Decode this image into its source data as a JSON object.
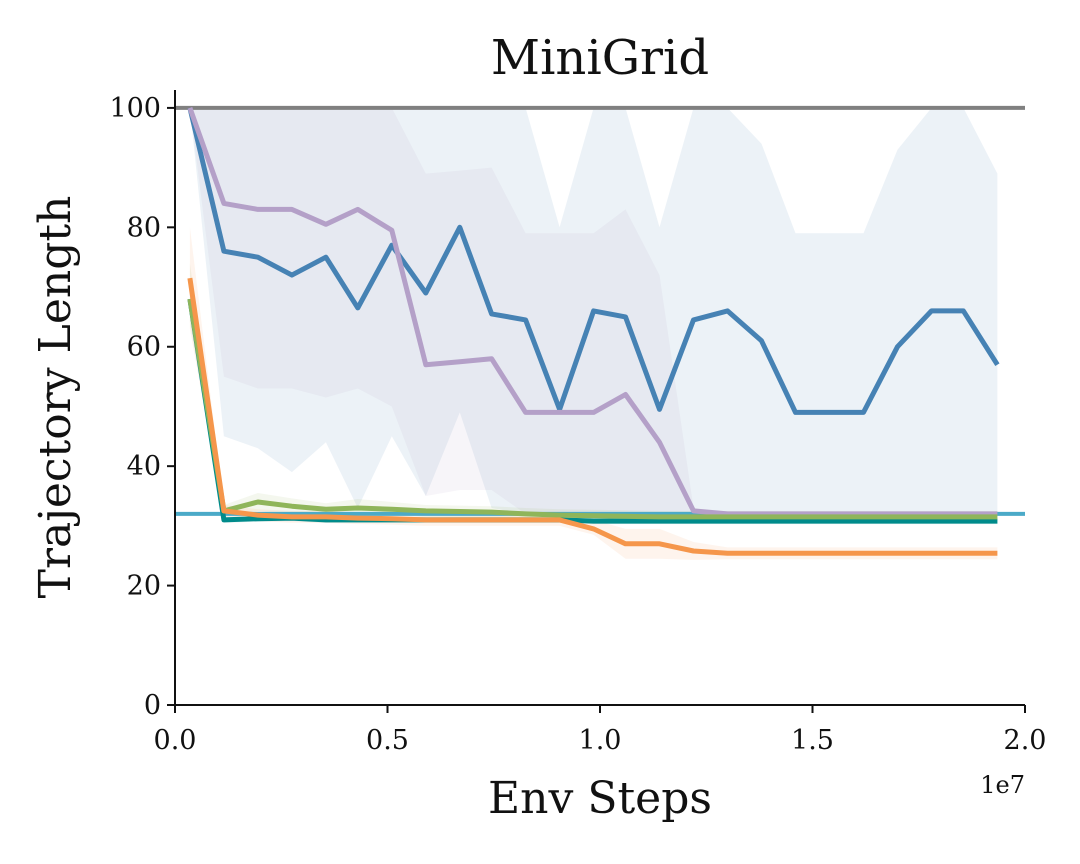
{
  "chart_data": {
    "type": "line",
    "title": "MiniGrid",
    "xlabel": "Env Steps",
    "ylabel": "Trajectory Length",
    "x_offset_label": "1e7",
    "xlim": [
      0,
      2.0
    ],
    "ylim": [
      0,
      103
    ],
    "xticks": [
      0.0,
      0.5,
      1.0,
      1.5,
      2.0
    ],
    "xtick_labels": [
      "0.0",
      "0.5",
      "1.0",
      "1.5",
      "2.0"
    ],
    "yticks": [
      0,
      20,
      40,
      60,
      80,
      100
    ],
    "ytick_labels": [
      "0",
      "20",
      "40",
      "60",
      "80",
      "100"
    ],
    "grid": false,
    "legend": "none",
    "hlines": [
      {
        "y": 100,
        "color": "#808080"
      },
      {
        "y": 32,
        "color": "#4BAAC8"
      }
    ],
    "series": [
      {
        "color": "#4682B4",
        "x": [
          0.035,
          0.115,
          0.195,
          0.275,
          0.355,
          0.43,
          0.51,
          0.59,
          0.67,
          0.745,
          0.825,
          0.905,
          0.985,
          1.06,
          1.14,
          1.22,
          1.3,
          1.38,
          1.46,
          1.54,
          1.62,
          1.7,
          1.78,
          1.855,
          1.935
        ],
        "y": [
          100,
          76,
          75,
          72,
          75,
          66.5,
          77,
          69,
          80,
          65.5,
          64.5,
          49.5,
          66,
          65,
          49.5,
          64.5,
          66,
          61,
          49,
          49,
          49,
          60,
          66,
          66,
          57
        ],
        "band_low": [
          100,
          45,
          43,
          39,
          44,
          33,
          45,
          35,
          49,
          33,
          32,
          32,
          32,
          32,
          32,
          32,
          32,
          32,
          32,
          32,
          32,
          32,
          32,
          32,
          32
        ],
        "band_high": [
          100,
          100,
          100,
          100,
          100,
          100,
          100,
          100,
          100,
          100,
          100,
          80,
          100,
          100,
          80,
          100,
          100,
          94,
          79,
          79,
          79,
          93,
          100,
          100,
          89
        ]
      },
      {
        "color": "#B4A0C8",
        "x": [
          0.035,
          0.115,
          0.195,
          0.275,
          0.355,
          0.43,
          0.51,
          0.59,
          0.67,
          0.745,
          0.825,
          0.905,
          0.985,
          1.06,
          1.14,
          1.22,
          1.3,
          1.38,
          1.46,
          1.54,
          1.62,
          1.7,
          1.78,
          1.855,
          1.935
        ],
        "y": [
          100,
          84,
          83,
          83,
          80.5,
          83,
          79.5,
          57,
          57.5,
          58,
          49,
          49,
          49,
          52,
          44,
          32.5,
          32,
          32,
          32,
          32,
          32,
          32,
          32,
          32,
          32
        ],
        "band_low": [
          100,
          55,
          53,
          53,
          51.5,
          53,
          50,
          35,
          36,
          36,
          32,
          32,
          32,
          32,
          32,
          32,
          32,
          32,
          32,
          32,
          32,
          32,
          32,
          32,
          32
        ],
        "band_high": [
          100,
          100,
          100,
          100,
          100,
          100,
          100,
          89,
          89.5,
          90,
          79,
          79,
          79,
          83,
          72,
          33,
          32,
          32,
          32,
          32,
          32,
          32,
          32,
          32,
          32
        ]
      },
      {
        "color": "#008B8B",
        "x": [
          0.035,
          0.115,
          0.195,
          0.275,
          0.355,
          0.43,
          0.51,
          0.59,
          0.67,
          0.745,
          0.825,
          0.905,
          0.985,
          1.06,
          1.14,
          1.22,
          1.3,
          1.38,
          1.46,
          1.54,
          1.62,
          1.7,
          1.78,
          1.855,
          1.935
        ],
        "y": [
          68,
          31,
          31.2,
          31.3,
          31,
          31,
          31,
          31,
          31,
          31,
          31,
          31,
          30.8,
          30.8,
          30.8,
          30.8,
          30.8,
          30.8,
          30.8,
          30.8,
          30.8,
          30.8,
          30.8,
          30.8,
          30.8
        ],
        "band_low": [
          66,
          30.5,
          30.7,
          30.8,
          30.5,
          30.5,
          30.5,
          30.5,
          30.5,
          30.5,
          30.5,
          30.5,
          30.3,
          30.3,
          30.3,
          30.3,
          30.3,
          30.3,
          30.3,
          30.3,
          30.3,
          30.3,
          30.3,
          30.3,
          30.3
        ],
        "band_high": [
          70,
          31.5,
          31.7,
          31.8,
          31.5,
          31.5,
          31.5,
          31.5,
          31.5,
          31.5,
          31.5,
          31.5,
          31.3,
          31.3,
          31.3,
          31.3,
          31.3,
          31.3,
          31.3,
          31.3,
          31.3,
          31.3,
          31.3,
          31.3,
          31.3
        ]
      },
      {
        "color": "#8FB55A",
        "x": [
          0.035,
          0.115,
          0.195,
          0.275,
          0.355,
          0.43,
          0.51,
          0.59,
          0.67,
          0.745,
          0.825,
          0.905,
          0.985,
          1.06,
          1.14,
          1.22,
          1.3,
          1.38,
          1.46,
          1.54,
          1.62,
          1.7,
          1.78,
          1.855,
          1.935
        ],
        "y": [
          68,
          32.5,
          34,
          33.3,
          32.8,
          33,
          32.8,
          32.5,
          32.4,
          32.3,
          32,
          31.8,
          31.7,
          31.6,
          31.5,
          31.5,
          31.5,
          31.5,
          31.5,
          31.5,
          31.5,
          31.5,
          31.5,
          31.5,
          31.5
        ],
        "band_low": [
          64,
          31.5,
          32.5,
          32,
          31.8,
          32,
          31.8,
          31.5,
          31.4,
          31.3,
          31,
          30.8,
          30.7,
          30.6,
          30.5,
          30.5,
          30.5,
          30.5,
          30.5,
          30.5,
          30.5,
          30.5,
          30.5,
          30.5,
          30.5
        ],
        "band_high": [
          74,
          33.5,
          35.5,
          34.6,
          33.8,
          34.5,
          34,
          33.5,
          33.4,
          33.3,
          33,
          32.8,
          32.7,
          32.6,
          32.5,
          32.5,
          32.5,
          32.5,
          32.5,
          32.5,
          32.5,
          32.5,
          32.5,
          32.5,
          32.5
        ]
      },
      {
        "color": "#F5964B",
        "x": [
          0.035,
          0.115,
          0.195,
          0.275,
          0.355,
          0.43,
          0.51,
          0.59,
          0.67,
          0.745,
          0.825,
          0.905,
          0.985,
          1.06,
          1.14,
          1.22,
          1.3,
          1.38,
          1.46,
          1.54,
          1.62,
          1.7,
          1.78,
          1.855,
          1.935
        ],
        "y": [
          71.5,
          32.5,
          31.8,
          31.5,
          31.5,
          31.3,
          31.2,
          31,
          31,
          31,
          31,
          31,
          29.5,
          27,
          27,
          25.8,
          25.4,
          25.4,
          25.4,
          25.4,
          25.4,
          25.4,
          25.4,
          25.4,
          25.4
        ],
        "band_low": [
          63,
          31.5,
          30.8,
          30.5,
          30.5,
          30.3,
          30.2,
          30,
          30,
          30,
          30,
          30,
          28.5,
          24.5,
          24.5,
          24.3,
          24.4,
          24.4,
          24.4,
          24.4,
          24.4,
          24.4,
          24.4,
          24.4,
          24.4
        ],
        "band_high": [
          80,
          33.5,
          32.8,
          32.5,
          32.5,
          32.3,
          32.2,
          32,
          32,
          32,
          32,
          32,
          31,
          29.5,
          29.5,
          27.3,
          26.4,
          26.4,
          26.4,
          26.4,
          26.4,
          26.4,
          26.4,
          26.4,
          26.4
        ]
      }
    ]
  }
}
